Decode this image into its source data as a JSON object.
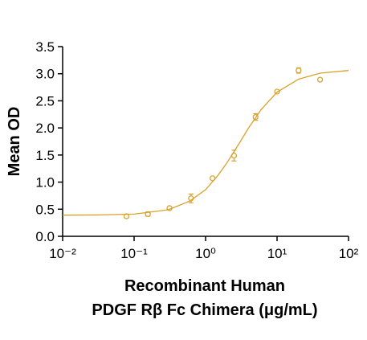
{
  "chart_data": {
    "type": "scatter",
    "xlabel": [
      "Recombinant Human",
      "PDGF Rβ Fc Chimera (μg/mL)"
    ],
    "ylabel": "Mean OD",
    "xlog": true,
    "xlim": [
      0.01,
      100
    ],
    "ylim": [
      0,
      3.5
    ],
    "xticks": [
      {
        "value": 0.01,
        "label": "10⁻²"
      },
      {
        "value": 0.1,
        "label": "10⁻¹"
      },
      {
        "value": 1,
        "label": "10⁰"
      },
      {
        "value": 10,
        "label": "10¹"
      },
      {
        "value": 100,
        "label": "10²"
      }
    ],
    "yticks": [
      {
        "value": 0,
        "label": "0.0"
      },
      0.5,
      {
        "value": 1,
        "label": "1.0"
      },
      1.5,
      {
        "value": 2,
        "label": "2.0"
      },
      2.5,
      {
        "value": 3,
        "label": "3.0"
      },
      3.5
    ],
    "series": [
      {
        "style": "markers",
        "color": "#d9a22b",
        "x": [
          0.078,
          0.156,
          0.3125,
          0.625,
          1.25,
          2.5,
          5,
          10,
          20,
          40
        ],
        "values": [
          0.37,
          0.41,
          0.52,
          0.7,
          1.07,
          1.49,
          2.2,
          2.67,
          3.06,
          2.89
        ],
        "errors": [
          0.03,
          0.04,
          0.02,
          0.08,
          0.02,
          0.1,
          0.06,
          0.01,
          0.05,
          0.0
        ]
      },
      {
        "style": "line",
        "color": "#d9a22b",
        "x": [
          0.01,
          0.03,
          0.1,
          0.3,
          0.6,
          1,
          1.5,
          2,
          3,
          4,
          6,
          10,
          20,
          40,
          100
        ],
        "values": [
          0.39,
          0.394,
          0.41,
          0.49,
          0.65,
          0.86,
          1.13,
          1.36,
          1.73,
          2.0,
          2.34,
          2.66,
          2.9,
          3.01,
          3.06
        ]
      }
    ]
  }
}
